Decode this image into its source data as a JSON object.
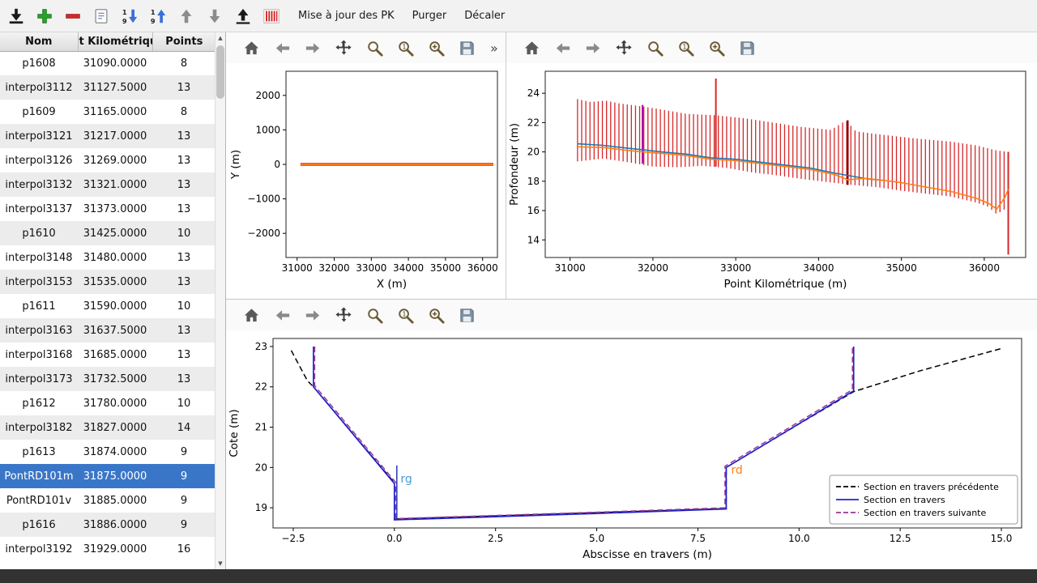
{
  "app_toolbar": {
    "icons": [
      {
        "name": "import"
      },
      {
        "name": "add"
      },
      {
        "name": "remove"
      },
      {
        "name": "edit"
      },
      {
        "name": "sort-desc"
      },
      {
        "name": "sort-asc"
      },
      {
        "name": "move-up"
      },
      {
        "name": "move-down"
      },
      {
        "name": "export"
      },
      {
        "name": "pk-stripes"
      }
    ],
    "buttons": [
      {
        "name": "update-pk",
        "label": "Mise à jour des PK"
      },
      {
        "name": "purge",
        "label": "Purger"
      },
      {
        "name": "shift",
        "label": "Décaler"
      }
    ]
  },
  "table": {
    "columns": [
      "Nom",
      "t Kilométriqu",
      "Points"
    ],
    "rows": [
      {
        "nom": "p1608",
        "pk": "31090.0000",
        "points": "8",
        "selected": false
      },
      {
        "nom": "interpol3112",
        "pk": "31127.5000",
        "points": "13",
        "selected": false
      },
      {
        "nom": "p1609",
        "pk": "31165.0000",
        "points": "8",
        "selected": false
      },
      {
        "nom": "interpol3121",
        "pk": "31217.0000",
        "points": "13",
        "selected": false
      },
      {
        "nom": "interpol3126",
        "pk": "31269.0000",
        "points": "13",
        "selected": false
      },
      {
        "nom": "interpol3132",
        "pk": "31321.0000",
        "points": "13",
        "selected": false
      },
      {
        "nom": "interpol3137",
        "pk": "31373.0000",
        "points": "13",
        "selected": false
      },
      {
        "nom": "p1610",
        "pk": "31425.0000",
        "points": "10",
        "selected": false
      },
      {
        "nom": "interpol3148",
        "pk": "31480.0000",
        "points": "13",
        "selected": false
      },
      {
        "nom": "interpol3153",
        "pk": "31535.0000",
        "points": "13",
        "selected": false
      },
      {
        "nom": "p1611",
        "pk": "31590.0000",
        "points": "10",
        "selected": false
      },
      {
        "nom": "interpol3163",
        "pk": "31637.5000",
        "points": "13",
        "selected": false
      },
      {
        "nom": "interpol3168",
        "pk": "31685.0000",
        "points": "13",
        "selected": false
      },
      {
        "nom": "interpol3173",
        "pk": "31732.5000",
        "points": "13",
        "selected": false
      },
      {
        "nom": "p1612",
        "pk": "31780.0000",
        "points": "10",
        "selected": false
      },
      {
        "nom": "interpol3182",
        "pk": "31827.0000",
        "points": "14",
        "selected": false
      },
      {
        "nom": "p1613",
        "pk": "31874.0000",
        "points": "9",
        "selected": false
      },
      {
        "nom": "PontRD101m",
        "pk": "31875.0000",
        "points": "9",
        "selected": true
      },
      {
        "nom": "PontRD101v",
        "pk": "31885.0000",
        "points": "9",
        "selected": false
      },
      {
        "nom": "p1616",
        "pk": "31886.0000",
        "points": "9",
        "selected": false
      },
      {
        "nom": "interpol3192",
        "pk": "31929.0000",
        "points": "16",
        "selected": false
      }
    ]
  },
  "plot_toolbar": {
    "icons": [
      "home",
      "back",
      "forward",
      "pan",
      "zoom",
      "zoom-one",
      "zoom-plus",
      "save"
    ],
    "overflow": "»"
  },
  "colors": {
    "selection": "#3a76c8",
    "bar_red": "#d62728",
    "line_blue": "#1f77b4",
    "line_orange": "#ff7f0e",
    "section_blue": "#2222cc",
    "section_purple": "#993399"
  },
  "chart_data": [
    {
      "id": "xy",
      "type": "line",
      "xlabel": "X (m)",
      "ylabel": "Y (m)",
      "xlim": [
        30700,
        36400
      ],
      "ylim": [
        -2700,
        2700
      ],
      "xticks": [
        31000,
        32000,
        33000,
        34000,
        35000,
        36000
      ],
      "yticks": [
        -2000,
        -1000,
        0,
        1000,
        2000
      ],
      "ytick_labels": [
        "−2000",
        "−1000",
        "0",
        "1000",
        "2000"
      ],
      "series": [
        {
          "name": "trace-red",
          "color": "#d62728",
          "width": 3.5,
          "points": [
            [
              31090,
              0
            ],
            [
              36290,
              0
            ]
          ]
        },
        {
          "name": "trace-orange",
          "color": "#ff7f0e",
          "width": 1.8,
          "points": [
            [
              31090,
              0
            ],
            [
              36290,
              0
            ]
          ]
        }
      ]
    },
    {
      "id": "profile",
      "type": "mixed",
      "xlabel": "Point Kilométrique (m)",
      "ylabel": "Profondeur (m)",
      "xlim": [
        30700,
        36500
      ],
      "ylim": [
        12.8,
        25.5
      ],
      "xticks": [
        31000,
        32000,
        33000,
        34000,
        35000,
        36000
      ],
      "yticks": [
        14,
        16,
        18,
        20,
        22,
        24
      ],
      "vbars": {
        "color": "#d62728",
        "width": 1.3,
        "step": 50,
        "x0": 31090,
        "x1": 36290,
        "top": [
          [
            31090,
            23.6
          ],
          [
            31250,
            23.4
          ],
          [
            31430,
            23.5
          ],
          [
            31600,
            23.3
          ],
          [
            31875,
            23.1
          ],
          [
            32100,
            22.9
          ],
          [
            32400,
            22.6
          ],
          [
            32750,
            22.5
          ],
          [
            33100,
            22.3
          ],
          [
            33450,
            22.0
          ],
          [
            33800,
            21.7
          ],
          [
            34150,
            21.5
          ],
          [
            34330,
            22.15
          ],
          [
            34450,
            21.4
          ],
          [
            34800,
            21.15
          ],
          [
            35200,
            20.9
          ],
          [
            35600,
            20.7
          ],
          [
            35900,
            20.45
          ],
          [
            36150,
            20.1
          ],
          [
            36290,
            20.0
          ]
        ],
        "bottom": [
          [
            31090,
            19.35
          ],
          [
            31400,
            19.55
          ],
          [
            31700,
            19.3
          ],
          [
            32000,
            19.0
          ],
          [
            32300,
            18.95
          ],
          [
            32600,
            19.05
          ],
          [
            32900,
            18.9
          ],
          [
            33200,
            18.6
          ],
          [
            33500,
            18.4
          ],
          [
            33800,
            18.15
          ],
          [
            34100,
            17.95
          ],
          [
            34400,
            17.75
          ],
          [
            34700,
            17.6
          ],
          [
            35000,
            17.35
          ],
          [
            35300,
            17.15
          ],
          [
            35600,
            16.95
          ],
          [
            35900,
            16.55
          ],
          [
            36050,
            16.25
          ],
          [
            36150,
            15.75
          ],
          [
            36250,
            16.1
          ],
          [
            36290,
            16.4
          ]
        ]
      },
      "special_bars": [
        {
          "x": 31875,
          "y0": 19.2,
          "y1": 23.2,
          "color": "#aa00aa",
          "width": 2
        },
        {
          "x": 32760,
          "y0": 19.0,
          "y1": 25.0,
          "color": "#d62728",
          "width": 2
        },
        {
          "x": 34350,
          "y0": 17.75,
          "y1": 22.15,
          "color": "#8b0000",
          "width": 2.6
        },
        {
          "x": 36290,
          "y0": 13.0,
          "y1": 20.0,
          "color": "#d62728",
          "width": 2
        }
      ],
      "series": [
        {
          "name": "fond-bleu",
          "color": "#1f77b4",
          "width": 1.6,
          "points": [
            [
              31090,
              20.55
            ],
            [
              31400,
              20.45
            ],
            [
              31700,
              20.25
            ],
            [
              31875,
              20.15
            ],
            [
              32100,
              20.0
            ],
            [
              32400,
              19.85
            ],
            [
              32700,
              19.6
            ],
            [
              33000,
              19.5
            ],
            [
              33300,
              19.3
            ],
            [
              33600,
              19.1
            ],
            [
              33900,
              18.9
            ],
            [
              34200,
              18.55
            ],
            [
              34400,
              18.35
            ],
            [
              34600,
              18.15
            ],
            [
              34800,
              18.05
            ]
          ]
        },
        {
          "name": "fond-orange",
          "color": "#ff7f0e",
          "width": 1.6,
          "points": [
            [
              31090,
              20.35
            ],
            [
              31400,
              20.3
            ],
            [
              31700,
              20.1
            ],
            [
              31875,
              20.0
            ],
            [
              32100,
              19.9
            ],
            [
              32400,
              19.75
            ],
            [
              32700,
              19.5
            ],
            [
              33000,
              19.4
            ],
            [
              33300,
              19.2
            ],
            [
              33600,
              19.0
            ],
            [
              33900,
              18.8
            ],
            [
              34200,
              18.45
            ],
            [
              34350,
              18.1
            ],
            [
              34550,
              18.2
            ],
            [
              34800,
              18.05
            ],
            [
              35000,
              17.9
            ],
            [
              35300,
              17.6
            ],
            [
              35600,
              17.3
            ],
            [
              35900,
              16.85
            ],
            [
              36050,
              16.5
            ],
            [
              36150,
              16.1
            ],
            [
              36250,
              16.9
            ],
            [
              36290,
              17.45
            ]
          ]
        }
      ]
    },
    {
      "id": "section",
      "type": "line",
      "xlabel": "Abscisse en travers (m)",
      "ylabel": "Cote (m)",
      "xlim": [
        -3.0,
        15.5
      ],
      "ylim": [
        18.5,
        23.2
      ],
      "xticks": [
        -2.5,
        0.0,
        2.5,
        5.0,
        7.5,
        10.0,
        12.5,
        15.0
      ],
      "xtick_labels": [
        "−2.5",
        "0.0",
        "2.5",
        "5.0",
        "7.5",
        "10.0",
        "12.5",
        "15.0"
      ],
      "yticks": [
        19,
        20,
        21,
        22,
        23
      ],
      "series": [
        {
          "name": "section-precedente",
          "color": "#000000",
          "width": 1.5,
          "dash": "--",
          "points": [
            [
              -2.55,
              22.9
            ],
            [
              -2.15,
              22.15
            ],
            [
              -2.0,
              22.0
            ],
            [
              0,
              19.62
            ],
            [
              0,
              18.72
            ],
            [
              2.5,
              18.8
            ],
            [
              5.0,
              18.88
            ],
            [
              8.2,
              18.98
            ],
            [
              8.2,
              20.0
            ],
            [
              10.2,
              21.2
            ],
            [
              11.35,
              21.88
            ],
            [
              13.0,
              22.4
            ],
            [
              15.0,
              22.95
            ]
          ]
        },
        {
          "name": "section-courante",
          "color": "#2222cc",
          "width": 1.7,
          "points": [
            [
              -2.0,
              23.0
            ],
            [
              -2.0,
              22.0
            ],
            [
              0,
              19.6
            ],
            [
              0,
              18.7
            ],
            [
              2.5,
              18.78
            ],
            [
              5.0,
              18.86
            ],
            [
              8.2,
              18.97
            ],
            [
              8.2,
              20.0
            ],
            [
              11.35,
              21.9
            ],
            [
              11.35,
              23.0
            ]
          ]
        },
        {
          "name": "section-suivante",
          "color": "#993399",
          "width": 1.5,
          "dash": "--",
          "points": [
            [
              -1.97,
              23.0
            ],
            [
              -1.97,
              22.03
            ],
            [
              0.03,
              19.63
            ],
            [
              0.03,
              18.73
            ],
            [
              2.5,
              18.81
            ],
            [
              5.0,
              18.89
            ],
            [
              8.17,
              19.0
            ],
            [
              8.17,
              20.03
            ],
            [
              11.32,
              21.93
            ],
            [
              11.32,
              23.0
            ]
          ]
        },
        {
          "name": "rg-marker",
          "color": "#3344bb",
          "width": 1.6,
          "points": [
            [
              0.06,
              18.72
            ],
            [
              0.06,
              20.05
            ]
          ]
        }
      ],
      "annotations": [
        {
          "x": 0.15,
          "y": 19.62,
          "text": "rg",
          "color": "#4a9bd5"
        },
        {
          "x": 8.32,
          "y": 19.85,
          "text": "rd",
          "color": "#ff7f0e"
        }
      ],
      "legend": {
        "entries": [
          {
            "label": "Section en travers précédente",
            "color": "#000000",
            "dash": "--"
          },
          {
            "label": "Section en travers",
            "color": "#2222cc",
            "dash": ""
          },
          {
            "label": "Section en travers suivante",
            "color": "#993399",
            "dash": "--"
          }
        ]
      }
    }
  ]
}
